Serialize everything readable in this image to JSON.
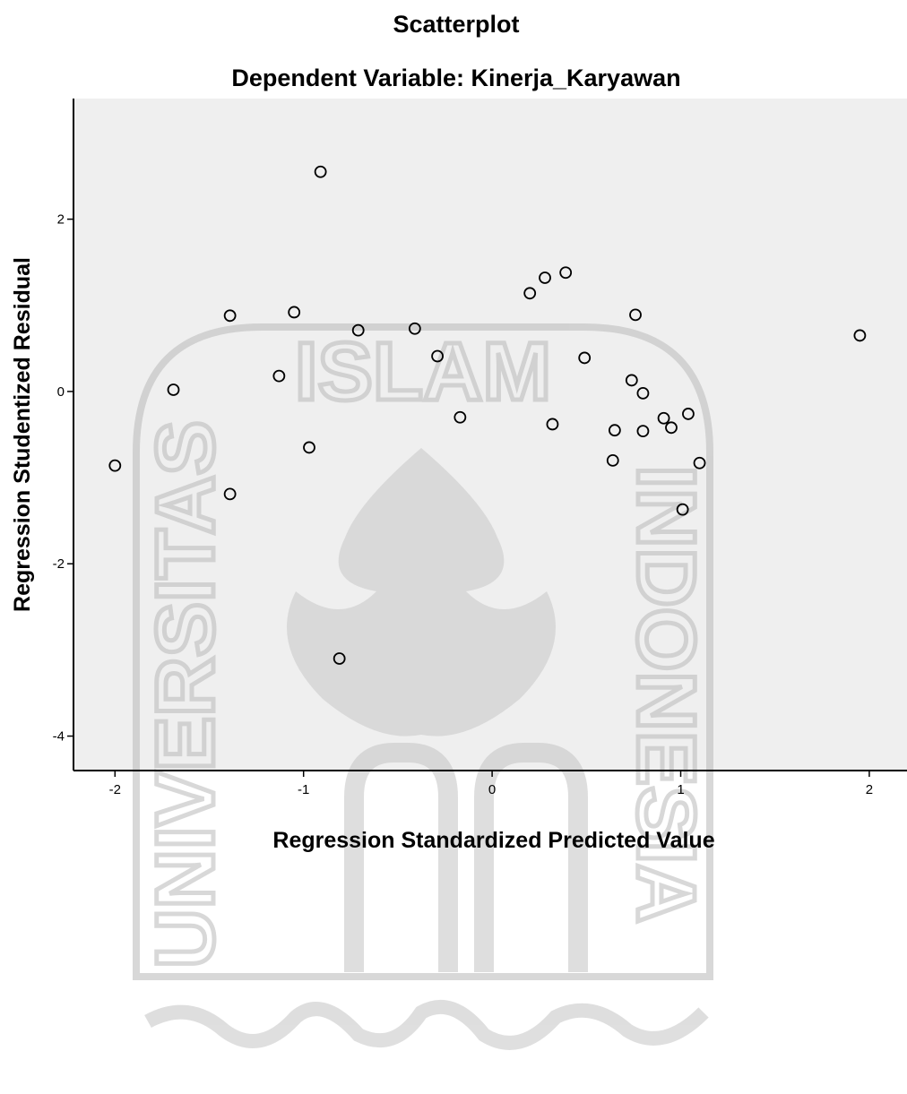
{
  "colors": {
    "background": "#ffffff",
    "plot_background": "#efefef",
    "frame": "#000000",
    "marker_stroke": "#000000",
    "watermark": "#b9b9b9"
  },
  "watermark": {
    "top_text": "ISLAM",
    "left_text": "UNIVERSITAS",
    "right_text": "INDONESIA"
  },
  "chart_data": {
    "type": "scatter",
    "title": "Scatterplot",
    "subtitle": "Dependent Variable: Kinerja_Karyawan",
    "xlabel": "Regression Standardized Predicted Value",
    "ylabel": "Regression Studentized Residual",
    "xlim": [
      -2.22,
      2.2
    ],
    "ylim": [
      -4.4,
      3.4
    ],
    "xticks": [
      -2,
      -1,
      0,
      1,
      2
    ],
    "yticks": [
      -4,
      -2,
      0,
      2
    ],
    "xtick_labels": [
      "-2",
      "-1",
      "0",
      "1",
      "2"
    ],
    "ytick_labels": [
      "-4",
      "-2",
      "0",
      "2"
    ],
    "grid": false,
    "marker": "open-circle",
    "points": [
      {
        "x": -2.0,
        "y": -0.86
      },
      {
        "x": -1.69,
        "y": 0.02
      },
      {
        "x": -1.39,
        "y": 0.88
      },
      {
        "x": -1.39,
        "y": -1.19
      },
      {
        "x": -1.13,
        "y": 0.18
      },
      {
        "x": -1.05,
        "y": 0.92
      },
      {
        "x": -0.97,
        "y": -0.65
      },
      {
        "x": -0.91,
        "y": 2.55
      },
      {
        "x": -0.71,
        "y": 0.71
      },
      {
        "x": -0.81,
        "y": -3.1
      },
      {
        "x": -0.41,
        "y": 0.73
      },
      {
        "x": -0.29,
        "y": 0.41
      },
      {
        "x": -0.17,
        "y": -0.3
      },
      {
        "x": 0.2,
        "y": 1.14
      },
      {
        "x": 0.28,
        "y": 1.32
      },
      {
        "x": 0.32,
        "y": -0.38
      },
      {
        "x": 0.39,
        "y": 1.38
      },
      {
        "x": 0.49,
        "y": 0.39
      },
      {
        "x": 0.64,
        "y": -0.8
      },
      {
        "x": 0.65,
        "y": -0.45
      },
      {
        "x": 0.74,
        "y": 0.13
      },
      {
        "x": 0.76,
        "y": 0.89
      },
      {
        "x": 0.8,
        "y": -0.02
      },
      {
        "x": 0.8,
        "y": -0.46
      },
      {
        "x": 0.91,
        "y": -0.31
      },
      {
        "x": 0.95,
        "y": -0.42
      },
      {
        "x": 1.01,
        "y": -1.37
      },
      {
        "x": 1.04,
        "y": -0.26
      },
      {
        "x": 1.1,
        "y": -0.83
      },
      {
        "x": 1.95,
        "y": 0.65
      }
    ]
  }
}
